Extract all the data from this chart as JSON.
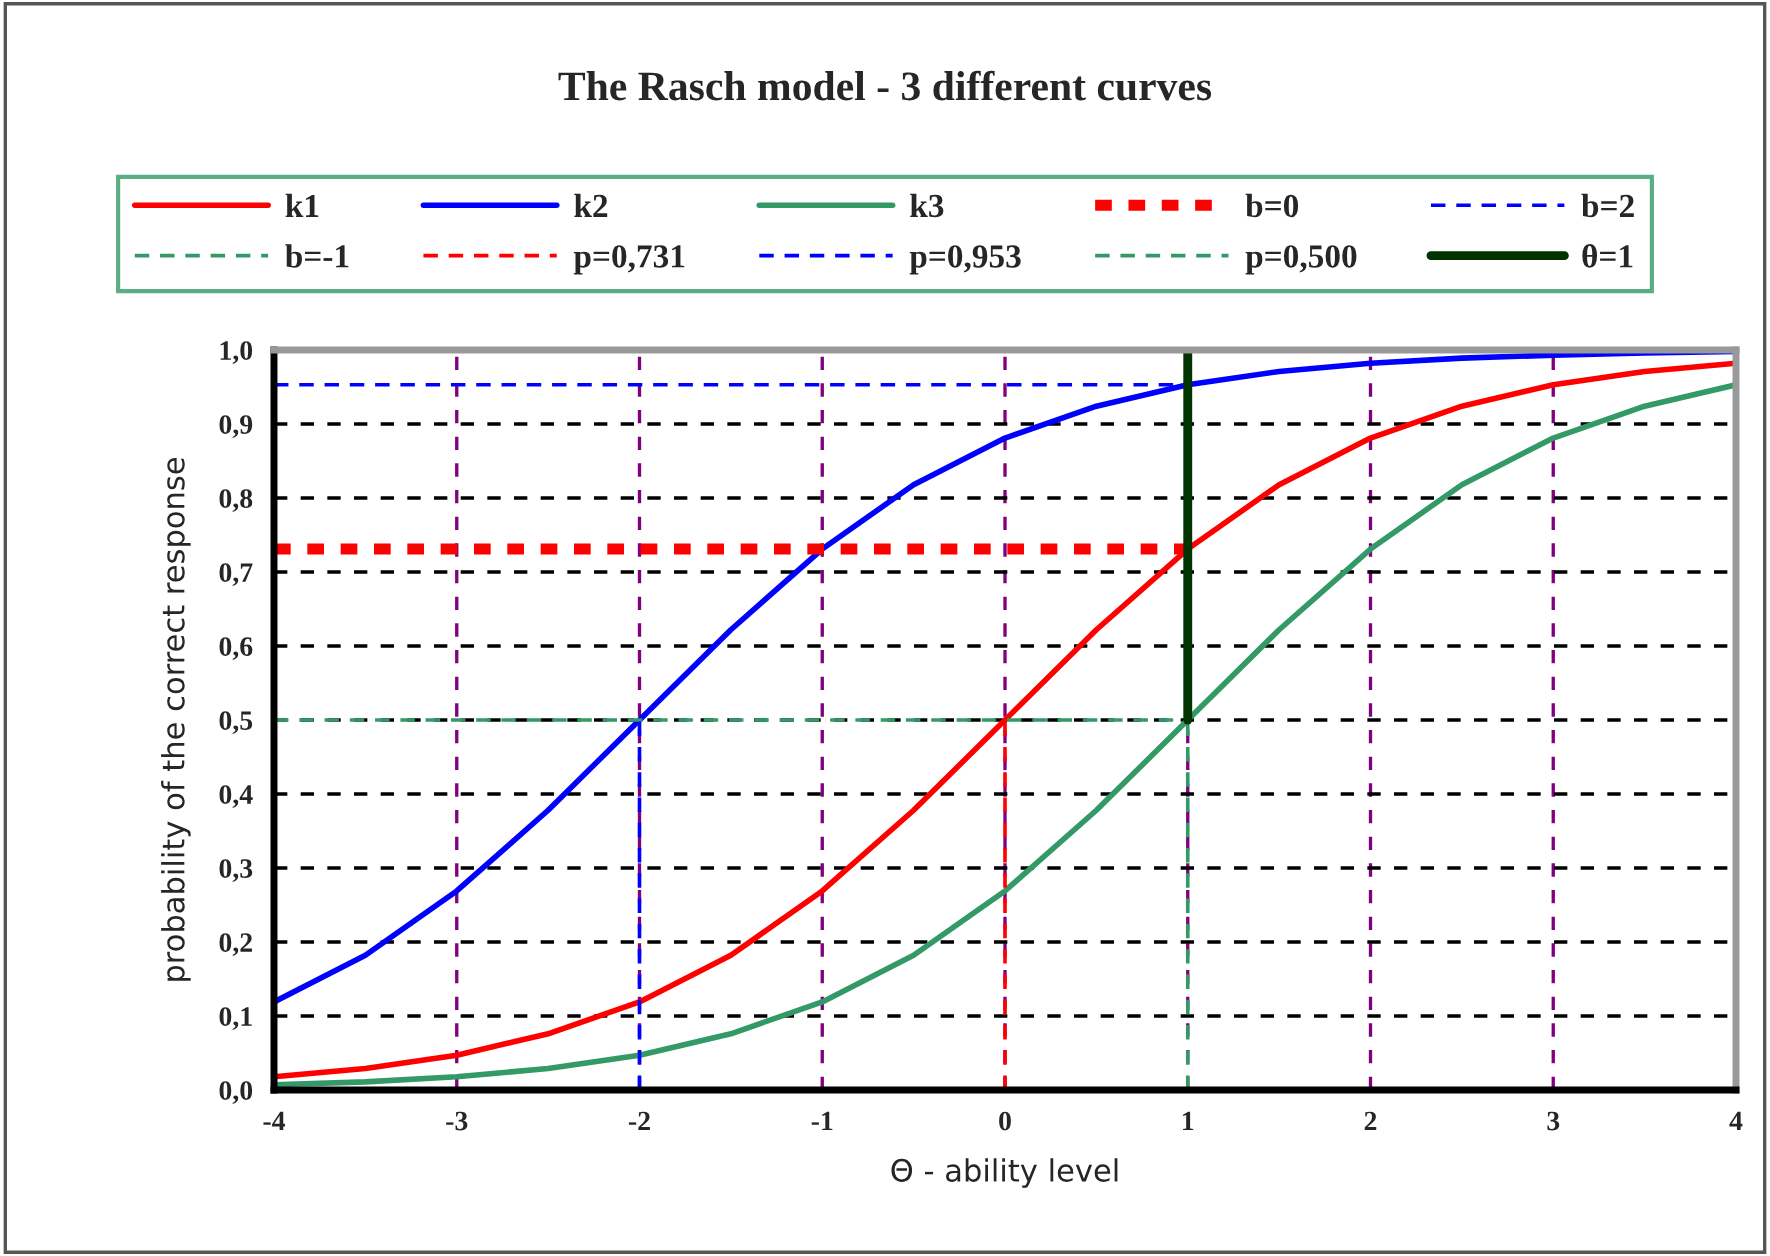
{
  "chart_data": {
    "type": "line",
    "title": "The Rasch model - 3 different curves",
    "xlabel": "Θ - ability level",
    "ylabel": "probability of the correct response",
    "x": [
      -4,
      -3.5,
      -3,
      -2.5,
      -2,
      -1.5,
      -1,
      -0.5,
      0,
      0.5,
      1,
      1.5,
      2,
      2.5,
      3,
      3.5,
      4
    ],
    "series": [
      {
        "name": "k1",
        "color": "#ff0000",
        "line_style": "solid",
        "values": [
          0.018,
          0.029,
          0.047,
          0.076,
          0.119,
          0.182,
          0.269,
          0.378,
          0.5,
          0.622,
          0.731,
          0.818,
          0.881,
          0.924,
          0.953,
          0.971,
          0.982
        ]
      },
      {
        "name": "k2",
        "color": "#0000ff",
        "line_style": "solid",
        "values": [
          0.119,
          0.182,
          0.269,
          0.378,
          0.5,
          0.622,
          0.731,
          0.818,
          0.881,
          0.924,
          0.953,
          0.971,
          0.982,
          0.989,
          0.993,
          0.996,
          0.998
        ]
      },
      {
        "name": "k3",
        "color": "#339966",
        "line_style": "solid",
        "values": [
          0.007,
          0.011,
          0.018,
          0.029,
          0.047,
          0.076,
          0.119,
          0.182,
          0.269,
          0.378,
          0.5,
          0.622,
          0.731,
          0.818,
          0.881,
          0.924,
          0.953
        ]
      },
      {
        "name": "b=0",
        "color": "#ff0000",
        "line_style": "dotted",
        "x": [
          -4,
          1
        ],
        "values": [
          0.731,
          0.731
        ]
      },
      {
        "name": "b=2",
        "color": "#0000ff",
        "line_style": "dashed",
        "x": [
          -4,
          1
        ],
        "values": [
          0.953,
          0.953
        ]
      },
      {
        "name": "b=-1",
        "color": "#339966",
        "line_style": "dashed",
        "x": [
          -4,
          1
        ],
        "values": [
          0.5,
          0.5
        ]
      },
      {
        "name": "p=0,731",
        "color": "#ff0000",
        "line_style": "dashed",
        "x": [
          0,
          0
        ],
        "values": [
          0,
          0.5
        ]
      },
      {
        "name": "p=0,953",
        "color": "#0000ff",
        "line_style": "dashed",
        "x": [
          -2,
          -2
        ],
        "values": [
          0,
          0.5
        ]
      },
      {
        "name": "p=0,500",
        "color": "#339966",
        "line_style": "dashed",
        "x": [
          1,
          1
        ],
        "values": [
          0,
          0.5
        ]
      },
      {
        "name": "θ=1",
        "color": "#003300",
        "line_style": "solid",
        "x": [
          1,
          1
        ],
        "values": [
          0.5,
          1.0
        ]
      }
    ],
    "xlim": [
      -4,
      4
    ],
    "xticks": [
      -4,
      -3,
      -2,
      -1,
      0,
      1,
      2,
      3,
      4
    ],
    "ylim": [
      0,
      1
    ],
    "yticks": [
      {
        "value": 0,
        "label": "0,0"
      },
      {
        "value": 0.1,
        "label": "0,1"
      },
      {
        "value": 0.2,
        "label": "0,2"
      },
      {
        "value": 0.3,
        "label": "0,3"
      },
      {
        "value": 0.4,
        "label": "0,4"
      },
      {
        "value": 0.5,
        "label": "0,5"
      },
      {
        "value": 0.6,
        "label": "0,6"
      },
      {
        "value": 0.7,
        "label": "0,7"
      },
      {
        "value": 0.8,
        "label": "0,8"
      },
      {
        "value": 0.9,
        "label": "0,9"
      },
      {
        "value": 1.0,
        "label": "1,0"
      }
    ],
    "grid": true,
    "legend": "top",
    "marker": "none"
  }
}
